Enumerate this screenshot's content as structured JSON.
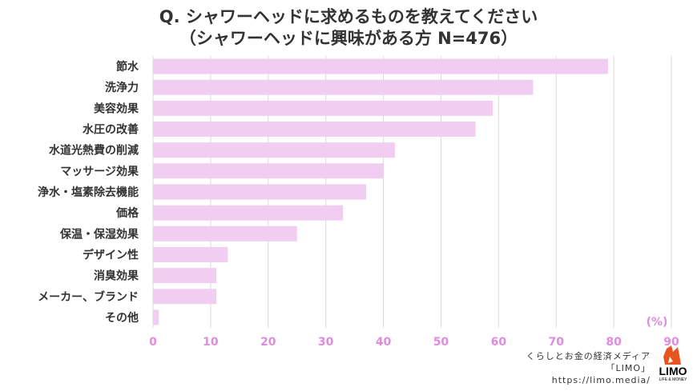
{
  "chart_data": {
    "type": "bar",
    "orientation": "horizontal",
    "title": "Q. シャワーヘッドに求めるものを教えてください",
    "subtitle": "（シャワーヘッドに興味がある方 N=476）",
    "categories": [
      "節水",
      "洗浄力",
      "美容効果",
      "水圧の改善",
      "水道光熱費の削減",
      "マッサージ効果",
      "浄水・塩素除去機能",
      "価格",
      "保温・保湿効果",
      "デザイン性",
      "消臭効果",
      "メーカー、ブランド",
      "その他"
    ],
    "values": [
      79,
      66,
      59,
      56,
      42,
      40,
      37,
      33,
      25,
      13,
      11,
      11,
      1
    ],
    "unit_label": "(%)",
    "xlim": [
      0,
      90
    ],
    "xticks": [
      "0",
      "10",
      "20",
      "30",
      "40",
      "50",
      "60",
      "70",
      "80",
      "90"
    ],
    "grid": true,
    "colors": {
      "bar": "#f2cdf2",
      "tick": "#e08ae0",
      "text": "#333333",
      "grid": "#d9d9d9"
    }
  },
  "footer": {
    "line1": "くらしとお金の経済メディア",
    "line2": "「LIMO」",
    "line3": "https://limo.media/"
  },
  "logo": {
    "name": "LIMO",
    "sub": "LIFE & MONEY",
    "icon": "fox-icon"
  }
}
